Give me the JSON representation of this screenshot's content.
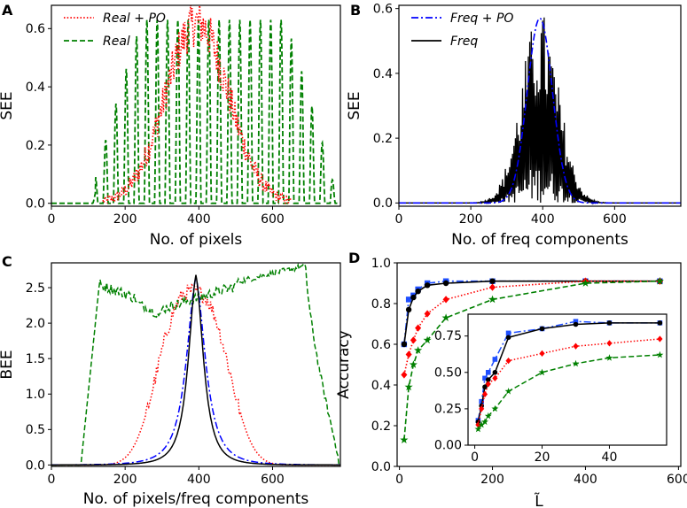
{
  "figure": {
    "colors": {
      "real_po": "#ff0000",
      "real": "#008000",
      "freq_po": "#0000ff",
      "freq": "#000000",
      "inset_blue": "#1f4fff"
    }
  },
  "chart_data": [
    {
      "panel": "A",
      "type": "line",
      "xlabel": "No. of pixels",
      "ylabel": "SEE",
      "xlim": [
        0,
        784
      ],
      "ylim": [
        -0.01,
        0.68
      ],
      "xticks": [
        0,
        200,
        400,
        600
      ],
      "yticks": [
        0.0,
        0.2,
        0.4,
        0.6
      ],
      "ytick_labels": [
        "0.0",
        "0.2",
        "0.4",
        "0.6"
      ],
      "legend": {
        "placement": "top-left",
        "entries": [
          "Real + PO",
          "Real"
        ]
      },
      "series": [
        {
          "name": "Real + PO",
          "color": "#ff0000",
          "style": "dotted",
          "kind": "gaussian_noisy",
          "center": 395,
          "width": 85,
          "peak": 0.62,
          "x_range": [
            140,
            650
          ]
        },
        {
          "name": "Real",
          "color": "#008000",
          "style": "dashed",
          "kind": "oscillating_envelope",
          "x_range": [
            100,
            780
          ],
          "peak": 0.63,
          "period": 28
        }
      ]
    },
    {
      "panel": "B",
      "type": "line",
      "xlabel": "No. of freq components",
      "ylabel": "SEE",
      "xlim": [
        0,
        784
      ],
      "ylim": [
        -0.01,
        0.61
      ],
      "xticks": [
        0,
        200,
        400,
        600
      ],
      "yticks": [
        0.0,
        0.2,
        0.4,
        0.6
      ],
      "ytick_labels": [
        "0.0",
        "0.2",
        "0.4",
        "0.6"
      ],
      "legend": {
        "placement": "top-left",
        "entries": [
          "Freq + PO",
          "Freq"
        ]
      },
      "series": [
        {
          "name": "Freq + PO",
          "color": "#0000ff",
          "style": "dashdot",
          "kind": "gaussian",
          "center": 392,
          "width": 35,
          "peak": 0.57
        },
        {
          "name": "Freq",
          "color": "#000000",
          "style": "solid",
          "kind": "spiky",
          "center": 392,
          "width": 40,
          "peak": 0.6
        }
      ]
    },
    {
      "panel": "C",
      "type": "line",
      "xlabel": "No. of pixels/freq components",
      "ylabel": "BEE",
      "xlim": [
        0,
        784
      ],
      "ylim": [
        -0.02,
        2.85
      ],
      "xticks": [
        0,
        200,
        400,
        600
      ],
      "yticks": [
        0.0,
        0.5,
        1.0,
        1.5,
        2.0,
        2.5
      ],
      "ytick_labels": [
        "0.0",
        "0.5",
        "1.0",
        "1.5",
        "2.0",
        "2.5"
      ],
      "series": [
        {
          "name": "Real + PO",
          "color": "#ff0000",
          "style": "dotted",
          "kind": "wide_bump",
          "center": 385,
          "width": 95,
          "peak": 2.45
        },
        {
          "name": "Real",
          "color": "#008000",
          "style": "dashed",
          "kind": "plateau",
          "x_range": [
            80,
            780
          ],
          "peak": 2.8
        },
        {
          "name": "Freq + PO",
          "color": "#0000ff",
          "style": "dashdot",
          "kind": "peak",
          "center": 392,
          "width": 48,
          "peak": 2.65
        },
        {
          "name": "Freq",
          "color": "#000000",
          "style": "solid",
          "kind": "peak",
          "center": 392,
          "width": 38,
          "peak": 2.68
        }
      ]
    },
    {
      "panel": "D",
      "type": "line",
      "xlabel": "L̃",
      "ylabel": "Accuracy",
      "xlim": [
        -5,
        605
      ],
      "ylim": [
        0.0,
        1.0
      ],
      "xticks": [
        0,
        200,
        400,
        600
      ],
      "yticks": [
        0.0,
        0.2,
        0.4,
        0.6,
        0.8,
        1.0
      ],
      "ytick_labels": [
        "0.0",
        "0.2",
        "0.4",
        "0.6",
        "0.8",
        "1.0"
      ],
      "series": [
        {
          "name": "Freq + PO",
          "color": "#1f4fff",
          "style": "dashdot",
          "marker": "square",
          "x": [
            10,
            20,
            30,
            40,
            60,
            100,
            200,
            400,
            560
          ],
          "y": [
            0.6,
            0.82,
            0.84,
            0.87,
            0.9,
            0.91,
            0.91,
            0.91,
            0.91
          ]
        },
        {
          "name": "Freq",
          "color": "#000000",
          "style": "solid",
          "marker": "circle",
          "x": [
            10,
            20,
            30,
            40,
            60,
            100,
            200,
            400,
            560
          ],
          "y": [
            0.6,
            0.77,
            0.83,
            0.86,
            0.89,
            0.9,
            0.91,
            0.91,
            0.91
          ]
        },
        {
          "name": "Real + PO",
          "color": "#ff0000",
          "style": "dotted",
          "marker": "diamond",
          "x": [
            10,
            20,
            30,
            40,
            60,
            100,
            200,
            400,
            560
          ],
          "y": [
            0.45,
            0.55,
            0.62,
            0.68,
            0.75,
            0.82,
            0.88,
            0.91,
            0.91
          ]
        },
        {
          "name": "Real",
          "color": "#008000",
          "style": "dashed",
          "marker": "star",
          "x": [
            10,
            20,
            30,
            40,
            60,
            100,
            200,
            400,
            560
          ],
          "y": [
            0.13,
            0.39,
            0.5,
            0.57,
            0.62,
            0.73,
            0.82,
            0.9,
            0.91
          ]
        }
      ],
      "inset": {
        "xlim": [
          -2,
          57
        ],
        "ylim": [
          0.0,
          0.9
        ],
        "xticks": [
          0,
          20,
          40
        ],
        "yticks": [
          0.0,
          0.25,
          0.5,
          0.75
        ],
        "ytick_labels": [
          "0.00",
          "0.25",
          "0.50",
          "0.75"
        ],
        "series": [
          {
            "name": "Freq + PO",
            "color": "#1f4fff",
            "style": "dashdot",
            "marker": "square",
            "x": [
              1,
              2,
              3,
              4,
              6,
              10,
              20,
              30,
              40,
              55
            ],
            "y": [
              0.17,
              0.3,
              0.46,
              0.5,
              0.59,
              0.77,
              0.8,
              0.85,
              0.84,
              0.84
            ]
          },
          {
            "name": "Freq",
            "color": "#000000",
            "style": "solid",
            "marker": "circle",
            "x": [
              1,
              2,
              3,
              4,
              6,
              10,
              20,
              30,
              40,
              55
            ],
            "y": [
              0.16,
              0.27,
              0.4,
              0.45,
              0.5,
              0.74,
              0.8,
              0.83,
              0.84,
              0.84
            ]
          },
          {
            "name": "Real + PO",
            "color": "#ff0000",
            "style": "dotted",
            "marker": "diamond",
            "x": [
              1,
              2,
              3,
              4,
              6,
              10,
              20,
              30,
              40,
              55
            ],
            "y": [
              0.14,
              0.25,
              0.35,
              0.42,
              0.46,
              0.58,
              0.63,
              0.68,
              0.7,
              0.73
            ]
          },
          {
            "name": "Real",
            "color": "#008000",
            "style": "dashed",
            "marker": "star",
            "x": [
              1,
              2,
              3,
              4,
              6,
              10,
              20,
              30,
              40,
              55
            ],
            "y": [
              0.11,
              0.14,
              0.16,
              0.2,
              0.25,
              0.37,
              0.5,
              0.56,
              0.6,
              0.62
            ]
          }
        ]
      }
    }
  ]
}
